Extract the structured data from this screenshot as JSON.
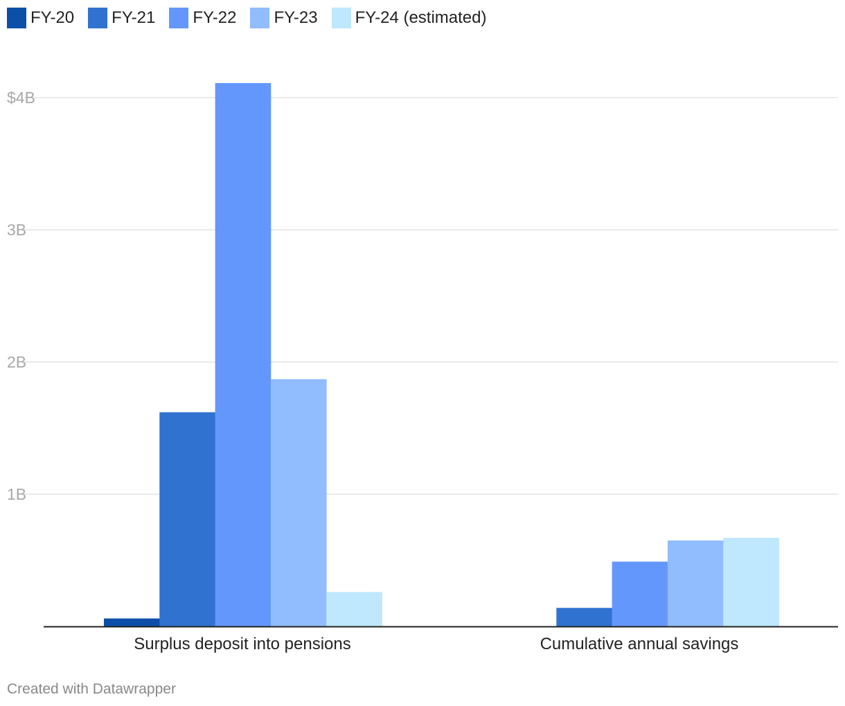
{
  "chart_data": {
    "type": "bar",
    "categories": [
      "Surplus deposit into pensions",
      "Cumulative annual savings"
    ],
    "series": [
      {
        "name": "FY-20",
        "color": "#0b4fa8",
        "values": [
          0.06,
          null
        ]
      },
      {
        "name": "FY-21",
        "color": "#3072d0",
        "values": [
          1.62,
          0.14
        ]
      },
      {
        "name": "FY-22",
        "color": "#6497fc",
        "values": [
          4.11,
          0.49
        ]
      },
      {
        "name": "FY-23",
        "color": "#91bcfd",
        "values": [
          1.87,
          0.65
        ]
      },
      {
        "name": "FY-24 (estimated)",
        "color": "#bfe7fe",
        "values": [
          0.26,
          0.67
        ]
      }
    ],
    "yticks": [
      {
        "value": 1,
        "label": "1B"
      },
      {
        "value": 2,
        "label": "2B"
      },
      {
        "value": 3,
        "label": "3B"
      },
      {
        "value": 4,
        "label": "$4B"
      }
    ],
    "ylim": [
      0,
      4.2
    ],
    "grid": true,
    "legend_position": "top-left",
    "title": "",
    "xlabel": "",
    "ylabel": ""
  },
  "footer": {
    "credit": "Created with Datawrapper"
  }
}
